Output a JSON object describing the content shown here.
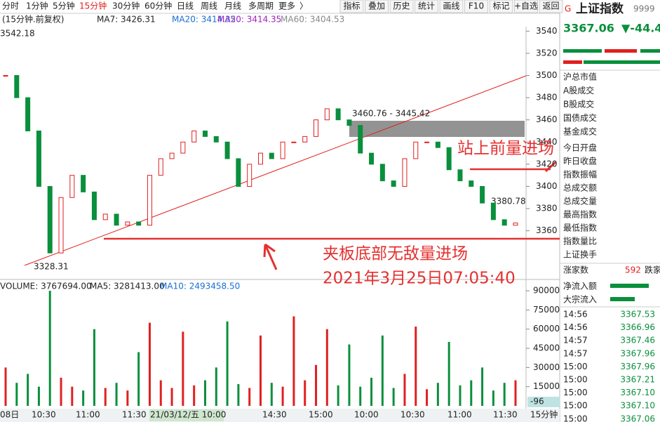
{
  "toolbar": {
    "tabs": [
      "分时",
      "1分钟",
      "5分钟",
      "15分钟",
      "30分钟",
      "60分钟",
      "日线",
      "周线",
      "月线",
      "多周期",
      "更多",
      "〉"
    ],
    "buttons": [
      "指标",
      "叠加",
      "历史",
      "统计",
      "画线",
      "F10",
      "标记",
      "+自选",
      "返回"
    ]
  },
  "indicator_bar": {
    "title": "(15分钟.前复权)",
    "ma": [
      "MA7: 3426.31",
      "MA20: 3414.35",
      "MA20: 3414.35",
      "MA60: 3404.53"
    ]
  },
  "price_chart": {
    "ylim": [
      3318,
      3544
    ],
    "yticks": [
      3360,
      3380,
      3400,
      3420,
      3440,
      3460,
      3480,
      3500,
      3520,
      3540
    ],
    "labels": {
      "high": "3542.18",
      "low": "3328.31",
      "range": "3460.76 - 3445.42",
      "last": "3380.78"
    },
    "closes": [
      3500,
      3480,
      3450,
      3400,
      3340,
      3390,
      3410,
      3395,
      3370,
      3375,
      3365,
      3368,
      3365,
      3410,
      3425,
      3430,
      3440,
      3450,
      3445,
      3440,
      3425,
      3400,
      3420,
      3430,
      3425,
      3440,
      3440,
      3445,
      3460,
      3470,
      3460,
      3455,
      3430,
      3420,
      3405,
      3400,
      3425,
      3440,
      3440,
      3435,
      3415,
      3405,
      3400,
      3385,
      3370,
      3365,
      3367
    ]
  },
  "volume_chart": {
    "header": [
      "VOLUME: 3767694.00",
      "MA5: 3281413.00",
      "MA10: 2493458.50"
    ],
    "ylim": [
      0,
      95000
    ],
    "yticks": [
      15000,
      30000,
      45000,
      60000,
      75000,
      90000
    ],
    "values": [
      30000,
      18000,
      25000,
      15000,
      90000,
      22000,
      15000,
      12000,
      60000,
      14000,
      18000,
      12000,
      42000,
      65000,
      20000,
      14000,
      58000,
      16000,
      20000,
      30000,
      66000,
      17000,
      14000,
      55000,
      18000,
      15000,
      70000,
      20000,
      32000,
      60000,
      16000,
      48000,
      15000,
      22000,
      55000,
      14000,
      25000,
      62000,
      13000,
      18000,
      50000,
      16000,
      20000,
      30000,
      12000,
      18000,
      20000
    ],
    "cursor_label": "-96"
  },
  "time_axis": {
    "labels": [
      "08日",
      "10:30",
      "11:00",
      "11:30",
      "21/03/12/五 10:00",
      "14:30",
      "15:00",
      "10:00",
      "10:30",
      "11:00",
      "11:30"
    ],
    "period": "15分钟"
  },
  "annotations": [
    "站上前量进场",
    "夹板底部无敌量进场",
    "2021年3月25日07:05:40"
  ],
  "side_panel": {
    "code_prefix": "G",
    "name": "上证指数",
    "code": "9999",
    "price": "3367.06",
    "change": "▼-44.4",
    "fields": [
      "沪总市值",
      "A股成交",
      "B股成交",
      "国债成交",
      "基金成交",
      "今日开盘",
      "昨日收盘",
      "指数振幅",
      "总成交额",
      "总成交量",
      "最高指数",
      "最低指数",
      "指数量比",
      "上证换手"
    ],
    "advance_label": "涨家数",
    "advance_value": "592",
    "decline_label": "跌家",
    "flow": [
      "净流入额",
      "大宗流入"
    ],
    "ticks": [
      {
        "time": "14:56",
        "price": "3367.53"
      },
      {
        "time": "14:56",
        "price": "3366.96"
      },
      {
        "time": "14:57",
        "price": "3367.46"
      },
      {
        "time": "14:57",
        "price": "3367.96"
      },
      {
        "time": "15:00",
        "price": "3367.96"
      },
      {
        "time": "15:00",
        "price": "3367.21"
      },
      {
        "time": "15:00",
        "price": "3367.10"
      },
      {
        "time": "15:00",
        "price": "3367.10"
      },
      {
        "time": "15:00",
        "price": "3367.06"
      }
    ]
  }
}
